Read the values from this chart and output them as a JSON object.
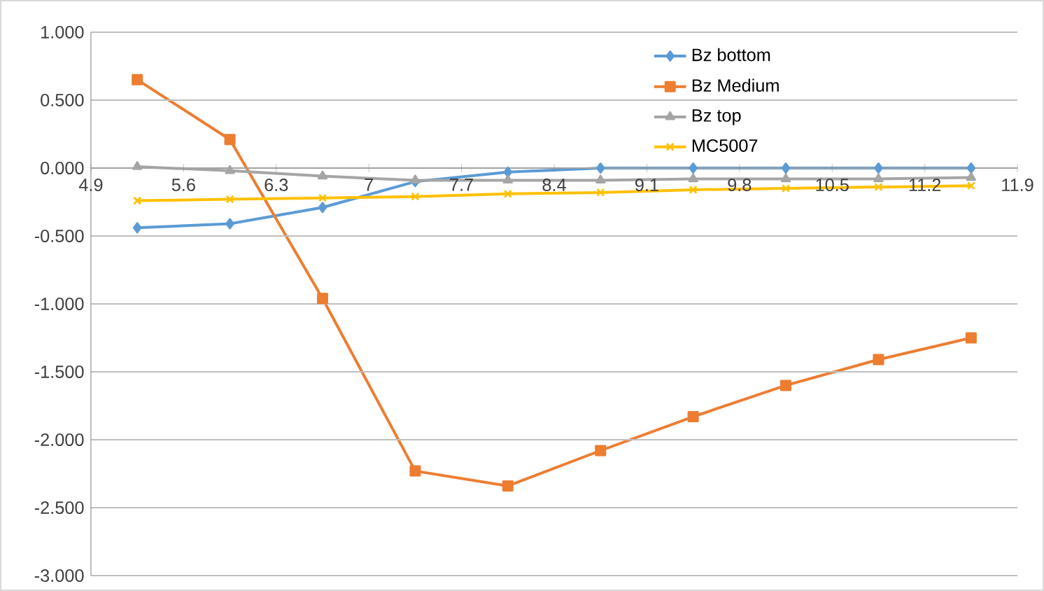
{
  "chart_data": {
    "type": "line",
    "x": [
      5.25,
      5.95,
      6.65,
      7.35,
      8.05,
      8.75,
      9.45,
      10.15,
      10.85,
      11.55
    ],
    "series": [
      {
        "name": "Bz bottom",
        "color": "#5b9bd5",
        "marker": "diamond",
        "values": [
          -0.44,
          -0.41,
          -0.29,
          -0.1,
          -0.03,
          0.0,
          0.0,
          0.0,
          0.0,
          0.0
        ]
      },
      {
        "name": "Bz Medium",
        "color": "#ed7d31",
        "marker": "square",
        "values": [
          0.65,
          0.21,
          -0.96,
          -2.23,
          -2.34,
          -2.08,
          -1.83,
          -1.6,
          -1.41,
          -1.25
        ]
      },
      {
        "name": "Bz top",
        "color": "#a5a5a5",
        "marker": "triangle",
        "values": [
          0.01,
          -0.02,
          -0.06,
          -0.09,
          -0.09,
          -0.09,
          -0.08,
          -0.08,
          -0.08,
          -0.07
        ]
      },
      {
        "name": "MC5007",
        "color": "#ffc000",
        "marker": "cross",
        "values": [
          -0.24,
          -0.23,
          -0.22,
          -0.21,
          -0.19,
          -0.18,
          -0.16,
          -0.15,
          -0.14,
          -0.13
        ]
      }
    ],
    "xlim": [
      4.9,
      11.9
    ],
    "xticks": [
      4.9,
      5.6,
      6.3,
      7,
      7.7,
      8.4,
      9.1,
      9.8,
      10.5,
      11.2,
      11.9
    ],
    "ylim": [
      -3,
      1
    ],
    "yticks": [
      {
        "value": -3,
        "label": "-3.000"
      },
      {
        "value": -2.5,
        "label": "-2.500"
      },
      {
        "value": -2,
        "label": "-2.000"
      },
      {
        "value": -1.5,
        "label": "-1.500"
      },
      {
        "value": -1,
        "label": "-1.000"
      },
      {
        "value": -0.5,
        "label": "-0.500"
      },
      {
        "value": 0,
        "label": "0.000"
      },
      {
        "value": 0.5,
        "label": "0.500"
      },
      {
        "value": 1,
        "label": "1.000"
      }
    ],
    "grid": "y",
    "legend": "top right",
    "line_style": "solid"
  }
}
